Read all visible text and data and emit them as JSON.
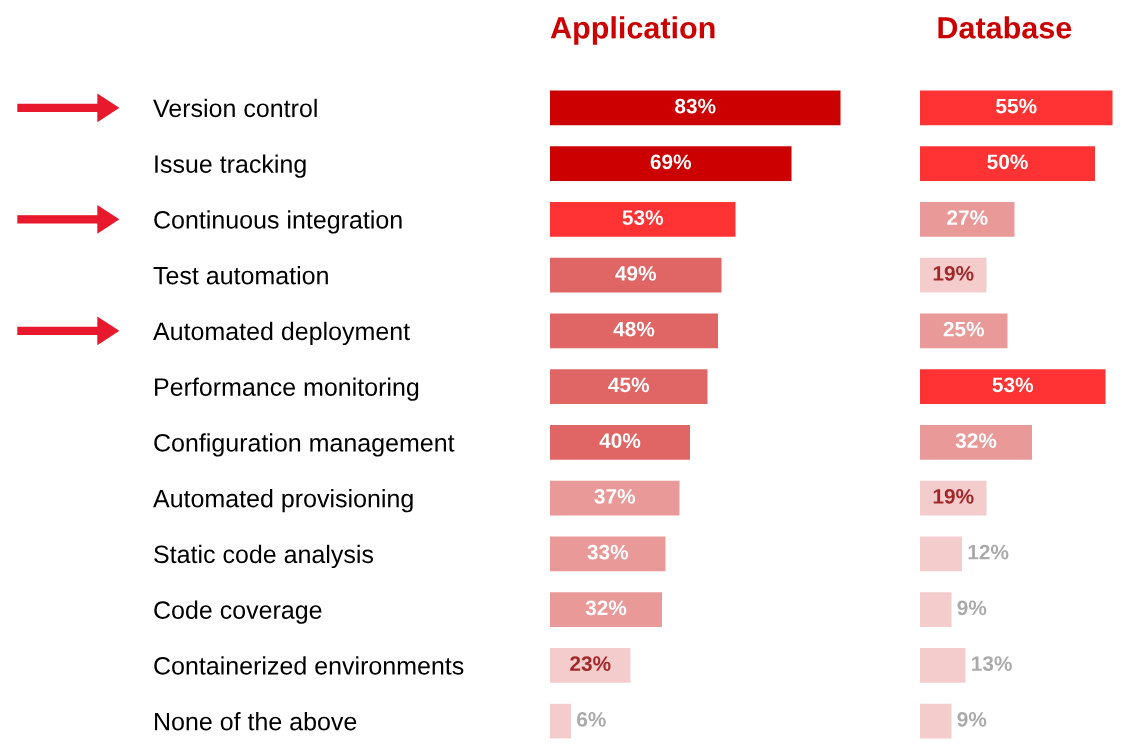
{
  "chart_data": [
    {
      "type": "bar",
      "orientation": "horizontal",
      "title": "Application",
      "categories": [
        "Version control",
        "Issue tracking",
        "Continuous integration",
        "Test automation",
        "Automated deployment",
        "Performance monitoring",
        "Configuration management",
        "Automated provisioning",
        "Static code analysis",
        "Code coverage",
        "Containerized environments",
        "None of the above"
      ],
      "values": [
        83,
        69,
        53,
        49,
        48,
        45,
        40,
        37,
        33,
        32,
        23,
        6
      ],
      "value_labels": [
        "83%",
        "69%",
        "53%",
        "49%",
        "48%",
        "45%",
        "40%",
        "37%",
        "33%",
        "32%",
        "23%",
        "6%"
      ],
      "colors": [
        "#cc0000",
        "#cc0000",
        "#ff3333",
        "#e06666",
        "#e06666",
        "#e06666",
        "#e06666",
        "#ea9999",
        "#ea9999",
        "#ea9999",
        "#f4cccc",
        "#f4cccc"
      ]
    },
    {
      "type": "bar",
      "orientation": "horizontal",
      "title": "Database",
      "categories": [
        null,
        null,
        null,
        null,
        null,
        null,
        null,
        null,
        null,
        null,
        null,
        null
      ],
      "values": [
        55,
        50,
        27,
        19,
        25,
        53,
        32,
        19,
        12,
        9,
        13,
        9
      ],
      "value_labels": [
        "55%",
        "50%",
        "27%",
        "19%",
        "25%",
        "53%",
        "32%",
        "19%",
        "12%",
        "9%",
        "13%",
        "9%"
      ],
      "colors": [
        "#ff3333",
        "#ff3333",
        "#ea9999",
        "#f4cccc",
        "#ea9999",
        "#ff3333",
        "#ea9999",
        "#f4cccc",
        "#f4cccc",
        "#f4cccc",
        "#f4cccc",
        "#f4cccc"
      ]
    }
  ]
}
